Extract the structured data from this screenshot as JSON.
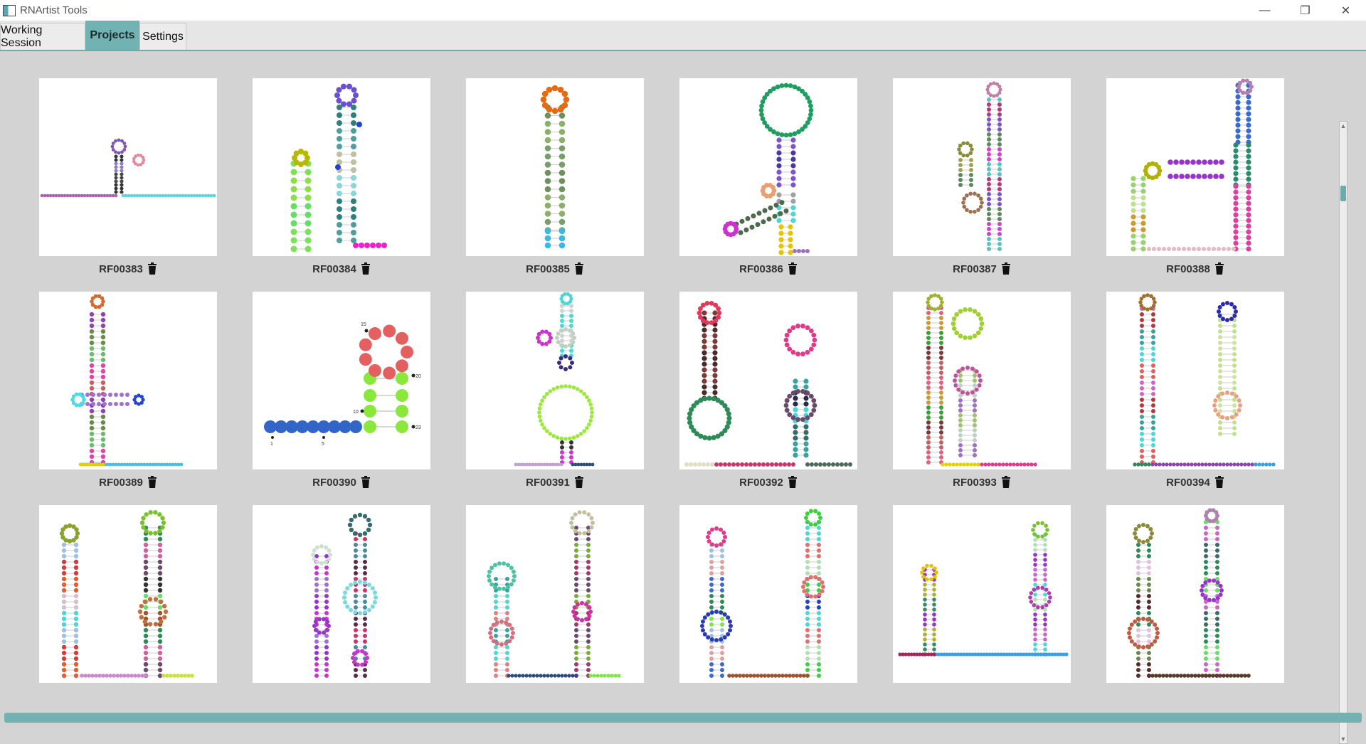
{
  "window": {
    "title": "RNArtist Tools",
    "controls": {
      "minimize": "—",
      "maximize": "❐",
      "close": "✕"
    }
  },
  "tabs": [
    {
      "label": "Working Session",
      "active": false
    },
    {
      "label": "Projects",
      "active": true
    },
    {
      "label": "Settings",
      "active": false
    }
  ],
  "projects": [
    {
      "id": "RF00383"
    },
    {
      "id": "RF00384"
    },
    {
      "id": "RF00385"
    },
    {
      "id": "RF00386"
    },
    {
      "id": "RF00387"
    },
    {
      "id": "RF00388"
    },
    {
      "id": "RF00389"
    },
    {
      "id": "RF00390"
    },
    {
      "id": "RF00391"
    },
    {
      "id": "RF00392"
    },
    {
      "id": "RF00393"
    },
    {
      "id": "RF00394"
    },
    {
      "id": ""
    },
    {
      "id": ""
    },
    {
      "id": ""
    },
    {
      "id": ""
    },
    {
      "id": ""
    },
    {
      "id": ""
    }
  ],
  "rf00390_numbers": [
    "15",
    "20",
    "10",
    "23",
    "1",
    "5"
  ],
  "icons": {
    "delete": "trash-icon",
    "app": "app-icon"
  },
  "colors": {
    "accent": "#71b3b3",
    "background": "#d3d3d3",
    "card": "#ffffff"
  }
}
